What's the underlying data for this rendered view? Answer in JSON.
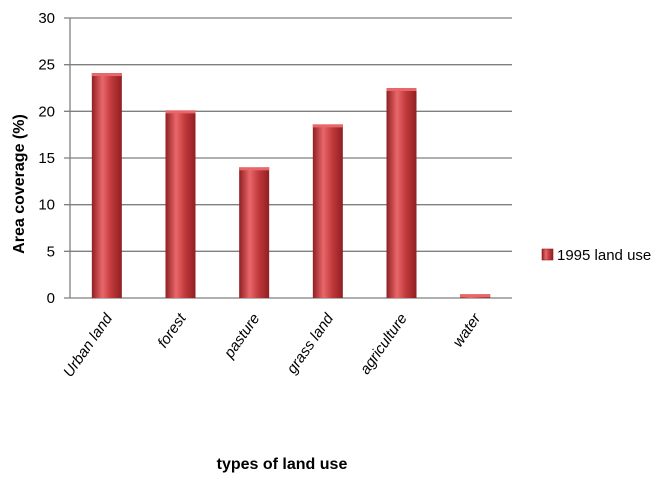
{
  "chart_data": {
    "type": "bar",
    "categories": [
      "Urban land",
      "forest",
      "pasture",
      "grass land",
      "agriculture",
      "water"
    ],
    "series": [
      {
        "name": "1995 land use",
        "values": [
          24.1,
          20.1,
          14.0,
          18.6,
          22.5,
          0.4
        ]
      }
    ],
    "title": "",
    "xlabel": "types of land use",
    "ylabel": "Area coverage  (%)",
    "ylim": [
      0,
      30
    ],
    "yticks": [
      0,
      5,
      10,
      15,
      20,
      25,
      30
    ],
    "grid": true,
    "legend": "right",
    "colors": {
      "bar": "#c0393b",
      "bar_light": "#e9676a",
      "bar_dark": "#8f1f22",
      "grid": "#7f7f7f"
    }
  }
}
